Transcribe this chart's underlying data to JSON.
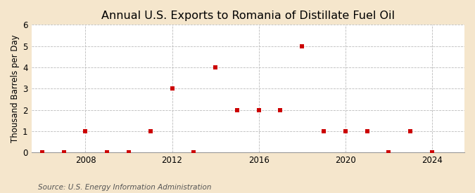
{
  "title": "Annual U.S. Exports to Romania of Distillate Fuel Oil",
  "ylabel": "Thousand Barrels per Day",
  "source": "Source: U.S. Energy Information Administration",
  "outer_bg": "#f5e6cc",
  "plot_bg": "#ffffff",
  "years": [
    2006,
    2007,
    2008,
    2009,
    2010,
    2011,
    2012,
    2013,
    2014,
    2015,
    2016,
    2017,
    2018,
    2019,
    2020,
    2021,
    2022,
    2023,
    2024
  ],
  "values": [
    0,
    0,
    1,
    0,
    0,
    1,
    3,
    0,
    4,
    2,
    2,
    2,
    5,
    1,
    1,
    1,
    0,
    1,
    0
  ],
  "dot_color": "#cc0000",
  "dot_size": 18,
  "ylim": [
    0,
    6
  ],
  "yticks": [
    0,
    1,
    2,
    3,
    4,
    5,
    6
  ],
  "xticks": [
    2008,
    2012,
    2016,
    2020,
    2024
  ],
  "xlim": [
    2005.5,
    2025.5
  ],
  "grid_color": "#bbbbbb",
  "title_fontsize": 11.5,
  "label_fontsize": 8.5,
  "tick_fontsize": 8.5,
  "source_fontsize": 7.5
}
